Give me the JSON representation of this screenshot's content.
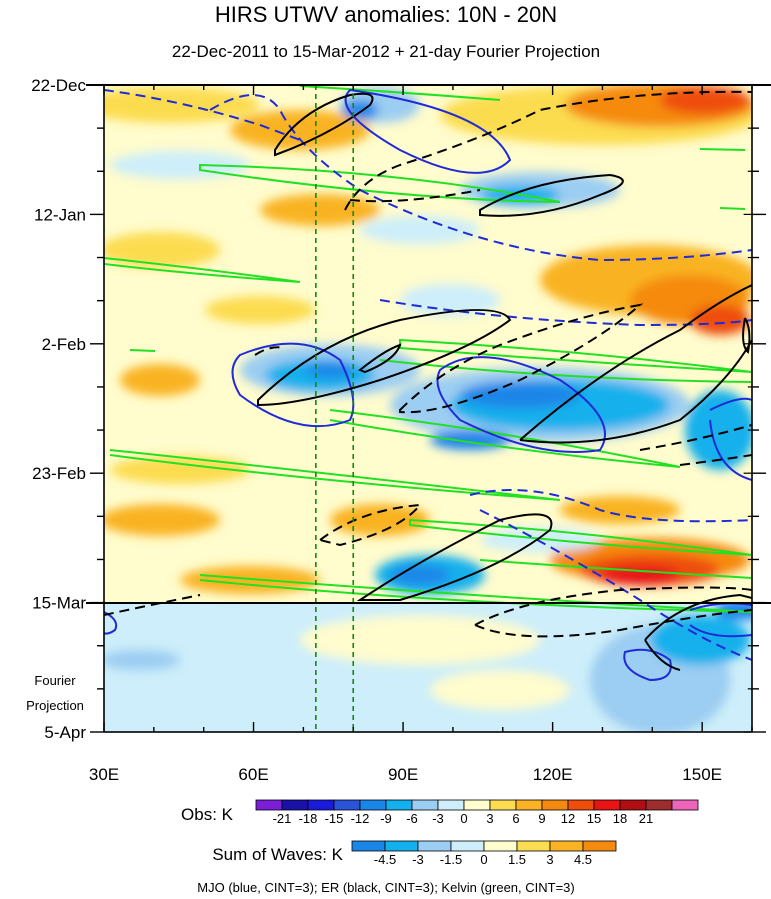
{
  "chart_data": {
    "type": "heatmap",
    "title": "HIRS UTWV anomalies: 10N - 20N",
    "subtitle": "22-Dec-2011 to 15-Mar-2012 + 21-day Fourier Projection",
    "xlabel": "",
    "ylabel": "",
    "x_axis": {
      "range": [
        30,
        160
      ],
      "ticks": [
        {
          "value": 30,
          "label": "30E"
        },
        {
          "value": 60,
          "label": "60E"
        },
        {
          "value": 90,
          "label": "90E"
        },
        {
          "value": 120,
          "label": "120E"
        },
        {
          "value": 150,
          "label": "150E"
        }
      ]
    },
    "y_axis": {
      "range_days": [
        0,
        105
      ],
      "ticks": [
        {
          "day": 0,
          "label": "22-Dec"
        },
        {
          "day": 21,
          "label": "12-Jan"
        },
        {
          "day": 42,
          "label": "2-Feb"
        },
        {
          "day": 63,
          "label": "23-Feb"
        },
        {
          "day": 84,
          "label": "15-Mar"
        },
        {
          "day": 105,
          "label": "5-Apr"
        }
      ]
    },
    "projection_label": [
      "Fourier",
      "Projection"
    ],
    "observation_end_day": 84,
    "reference_longitudes": [
      72.5,
      80
    ],
    "obs_colorbar": {
      "label": "Obs: K",
      "levels": [
        "-21",
        "-18",
        "-15",
        "-12",
        "-9",
        "-6",
        "-3",
        "0",
        "3",
        "6",
        "9",
        "12",
        "15",
        "18",
        "21"
      ],
      "colors": [
        "#7a1fd6",
        "#1a12a8",
        "#1a1adb",
        "#2b53d8",
        "#1a86e8",
        "#12b0ec",
        "#9ccdf2",
        "#cdeefa",
        "#fffccd",
        "#fcdc50",
        "#f9b324",
        "#f58a10",
        "#ee4d0c",
        "#e81414",
        "#b10e14",
        "#9e2d2d",
        "#ee66bb"
      ]
    },
    "waves_colorbar": {
      "label": "Sum of Waves: K",
      "levels": [
        "-4.5",
        "-3",
        "-1.5",
        "0",
        "1.5",
        "3",
        "4.5"
      ],
      "colors": [
        "#1a86e8",
        "#12b0ec",
        "#9ccdf2",
        "#cdeefa",
        "#fffccd",
        "#fcdc50",
        "#f9b324",
        "#f58a10"
      ]
    },
    "contour_legend": "MJO (blue, CINT=3); ER (black, CINT=3); Kelvin (green, CINT=3)",
    "contour_colors": {
      "mjo": "#1f2bd6",
      "er": "#000000",
      "kelvin": "#22e022"
    },
    "anomaly_features": [
      {
        "lon": [
          95,
          125
        ],
        "day": [
          63,
          66
        ],
        "value": -9
      },
      {
        "lon": [
          78,
          90
        ],
        "day": [
          44,
          46
        ],
        "value": -9
      },
      {
        "lon": [
          70,
          75
        ],
        "day": [
          4,
          7
        ],
        "value": -6
      },
      {
        "lon": [
          140,
          156
        ],
        "day": [
          1,
          5
        ],
        "value": 15
      },
      {
        "lon": [
          132,
          150
        ],
        "day": [
          78,
          82
        ],
        "value": 15
      }
    ]
  }
}
